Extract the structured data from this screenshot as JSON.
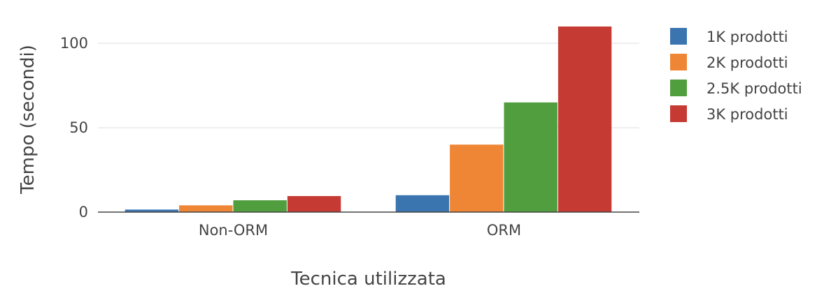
{
  "chart_data": {
    "type": "bar",
    "title": "",
    "xlabel": "Tecnica utilizzata",
    "ylabel": "Tempo (secondi)",
    "categories": [
      "Non-ORM",
      "ORM"
    ],
    "ylim": [
      0,
      110
    ],
    "yticks": [
      0,
      50,
      100
    ],
    "grid": true,
    "legend_position": "right",
    "series": [
      {
        "name": "1K prodotti",
        "color": "#3a75b0",
        "values": [
          1.5,
          10
        ]
      },
      {
        "name": "2K prodotti",
        "color": "#ef8636",
        "values": [
          4,
          40
        ]
      },
      {
        "name": "2.5K prodotti",
        "color": "#519e3e",
        "values": [
          7,
          65
        ]
      },
      {
        "name": "3K prodotti",
        "color": "#c53a32",
        "values": [
          9.5,
          110
        ]
      }
    ]
  }
}
